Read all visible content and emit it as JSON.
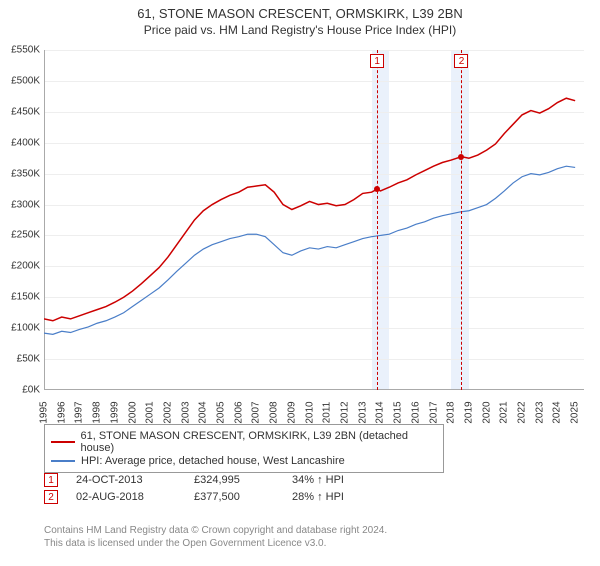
{
  "title": "61, STONE MASON CRESCENT, ORMSKIRK, L39 2BN",
  "subtitle": "Price paid vs. HM Land Registry's House Price Index (HPI)",
  "chart": {
    "type": "line",
    "background_color": "#ffffff",
    "grid_color": "#eeeeee",
    "axis_color": "#aaaaaa",
    "xlim": [
      1995,
      2025.5
    ],
    "ylim": [
      0,
      550
    ],
    "ytick_step": 50,
    "ytick_prefix": "£",
    "ytick_suffix": "K",
    "xticks": [
      1995,
      1996,
      1997,
      1998,
      1999,
      2000,
      2001,
      2002,
      2003,
      2004,
      2005,
      2006,
      2007,
      2008,
      2009,
      2010,
      2011,
      2012,
      2013,
      2014,
      2015,
      2016,
      2017,
      2018,
      2019,
      2020,
      2021,
      2022,
      2023,
      2024,
      2025
    ],
    "shaded_bands_x": [
      [
        2013.5,
        2014.5
      ],
      [
        2018.0,
        2019.0
      ]
    ],
    "shade_color": "#eaf1fb",
    "markers": [
      {
        "label": "1",
        "x": 2013.82,
        "color": "#cc0000"
      },
      {
        "label": "2",
        "x": 2018.58,
        "color": "#cc0000"
      }
    ],
    "series": [
      {
        "name": "property",
        "label": "61, STONE MASON CRESCENT, ORMSKIRK, L39 2BN (detached house)",
        "color": "#cc0000",
        "line_width": 1.5,
        "points": [
          [
            1995,
            115
          ],
          [
            1995.5,
            112
          ],
          [
            1996,
            118
          ],
          [
            1996.5,
            115
          ],
          [
            1997,
            120
          ],
          [
            1997.5,
            125
          ],
          [
            1998,
            130
          ],
          [
            1998.5,
            135
          ],
          [
            1999,
            142
          ],
          [
            1999.5,
            150
          ],
          [
            2000,
            160
          ],
          [
            2000.5,
            172
          ],
          [
            2001,
            185
          ],
          [
            2001.5,
            198
          ],
          [
            2002,
            215
          ],
          [
            2002.5,
            235
          ],
          [
            2003,
            255
          ],
          [
            2003.5,
            275
          ],
          [
            2004,
            290
          ],
          [
            2004.5,
            300
          ],
          [
            2005,
            308
          ],
          [
            2005.5,
            315
          ],
          [
            2006,
            320
          ],
          [
            2006.5,
            328
          ],
          [
            2007,
            330
          ],
          [
            2007.5,
            332
          ],
          [
            2008,
            320
          ],
          [
            2008.5,
            300
          ],
          [
            2009,
            292
          ],
          [
            2009.5,
            298
          ],
          [
            2010,
            305
          ],
          [
            2010.5,
            300
          ],
          [
            2011,
            302
          ],
          [
            2011.5,
            298
          ],
          [
            2012,
            300
          ],
          [
            2012.5,
            308
          ],
          [
            2013,
            318
          ],
          [
            2013.5,
            320
          ],
          [
            2013.82,
            325
          ],
          [
            2014,
            322
          ],
          [
            2014.5,
            328
          ],
          [
            2015,
            335
          ],
          [
            2015.5,
            340
          ],
          [
            2016,
            348
          ],
          [
            2016.5,
            355
          ],
          [
            2017,
            362
          ],
          [
            2017.5,
            368
          ],
          [
            2018,
            372
          ],
          [
            2018.58,
            377.5
          ],
          [
            2019,
            375
          ],
          [
            2019.5,
            380
          ],
          [
            2020,
            388
          ],
          [
            2020.5,
            398
          ],
          [
            2021,
            415
          ],
          [
            2021.5,
            430
          ],
          [
            2022,
            445
          ],
          [
            2022.5,
            452
          ],
          [
            2023,
            448
          ],
          [
            2023.5,
            455
          ],
          [
            2024,
            465
          ],
          [
            2024.5,
            472
          ],
          [
            2025,
            468
          ]
        ],
        "dots": [
          [
            2013.82,
            325
          ],
          [
            2018.58,
            377.5
          ]
        ]
      },
      {
        "name": "hpi",
        "label": "HPI: Average price, detached house, West Lancashire",
        "color": "#4a7ec8",
        "line_width": 1.2,
        "points": [
          [
            1995,
            92
          ],
          [
            1995.5,
            90
          ],
          [
            1996,
            95
          ],
          [
            1996.5,
            93
          ],
          [
            1997,
            98
          ],
          [
            1997.5,
            102
          ],
          [
            1998,
            108
          ],
          [
            1998.5,
            112
          ],
          [
            1999,
            118
          ],
          [
            1999.5,
            125
          ],
          [
            2000,
            135
          ],
          [
            2000.5,
            145
          ],
          [
            2001,
            155
          ],
          [
            2001.5,
            165
          ],
          [
            2002,
            178
          ],
          [
            2002.5,
            192
          ],
          [
            2003,
            205
          ],
          [
            2003.5,
            218
          ],
          [
            2004,
            228
          ],
          [
            2004.5,
            235
          ],
          [
            2005,
            240
          ],
          [
            2005.5,
            245
          ],
          [
            2006,
            248
          ],
          [
            2006.5,
            252
          ],
          [
            2007,
            252
          ],
          [
            2007.5,
            248
          ],
          [
            2008,
            235
          ],
          [
            2008.5,
            222
          ],
          [
            2009,
            218
          ],
          [
            2009.5,
            225
          ],
          [
            2010,
            230
          ],
          [
            2010.5,
            228
          ],
          [
            2011,
            232
          ],
          [
            2011.5,
            230
          ],
          [
            2012,
            235
          ],
          [
            2012.5,
            240
          ],
          [
            2013,
            245
          ],
          [
            2013.5,
            248
          ],
          [
            2014,
            250
          ],
          [
            2014.5,
            252
          ],
          [
            2015,
            258
          ],
          [
            2015.5,
            262
          ],
          [
            2016,
            268
          ],
          [
            2016.5,
            272
          ],
          [
            2017,
            278
          ],
          [
            2017.5,
            282
          ],
          [
            2018,
            285
          ],
          [
            2018.5,
            288
          ],
          [
            2019,
            290
          ],
          [
            2019.5,
            295
          ],
          [
            2020,
            300
          ],
          [
            2020.5,
            310
          ],
          [
            2021,
            322
          ],
          [
            2021.5,
            335
          ],
          [
            2022,
            345
          ],
          [
            2022.5,
            350
          ],
          [
            2023,
            348
          ],
          [
            2023.5,
            352
          ],
          [
            2024,
            358
          ],
          [
            2024.5,
            362
          ],
          [
            2025,
            360
          ]
        ]
      }
    ]
  },
  "legend": {
    "border_color": "#999999",
    "items": [
      {
        "color": "#cc0000",
        "label": "61, STONE MASON CRESCENT, ORMSKIRK, L39 2BN (detached house)"
      },
      {
        "color": "#4a7ec8",
        "label": "HPI: Average price, detached house, West Lancashire"
      }
    ]
  },
  "events": [
    {
      "num": "1",
      "date": "24-OCT-2013",
      "price": "£324,995",
      "delta": "34% ↑ HPI"
    },
    {
      "num": "2",
      "date": "02-AUG-2018",
      "price": "£377,500",
      "delta": "28% ↑ HPI"
    }
  ],
  "footnote_line1": "Contains HM Land Registry data © Crown copyright and database right 2024.",
  "footnote_line2": "This data is licensed under the Open Government Licence v3.0."
}
